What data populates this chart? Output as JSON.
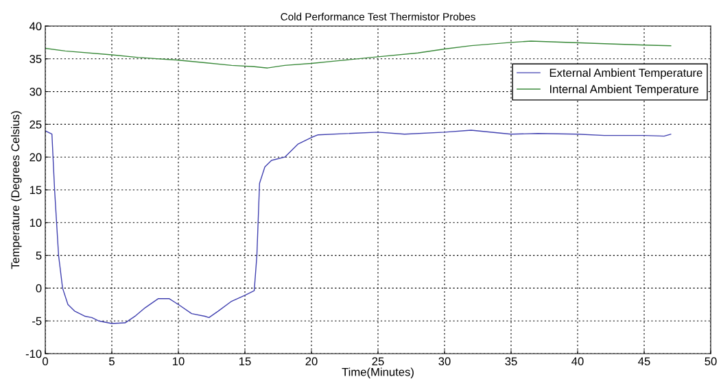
{
  "chart_data": {
    "type": "line",
    "title": "Cold Performance Test Thermistor Probes",
    "xlabel": "Time(Minutes)",
    "ylabel": "Temperature (Degrees Celsius)",
    "xlim": [
      0,
      50
    ],
    "xticks": [
      0,
      5,
      10,
      15,
      20,
      25,
      30,
      35,
      40,
      45,
      50
    ],
    "ylim": [
      -10,
      40
    ],
    "yticks": [
      -10,
      -5,
      0,
      5,
      10,
      15,
      20,
      25,
      30,
      35,
      40
    ],
    "grid": true,
    "legend": "top right",
    "line_style": "solid",
    "series": [
      {
        "name": "External Ambient Temperature",
        "color": "#4040b0",
        "x": [
          0,
          0.5,
          0.7,
          1,
          1.3,
          1.7,
          2.2,
          3,
          3.5,
          4,
          5,
          6,
          6.8,
          7.5,
          8.5,
          9.3,
          10,
          11,
          12,
          12.3,
          13,
          14,
          15,
          15.7,
          15.9,
          16.1,
          16.5,
          17,
          18,
          19,
          20,
          20.5,
          25,
          27,
          30,
          32,
          35,
          37,
          40,
          42,
          45,
          46.5,
          47
        ],
        "values": [
          24,
          23.5,
          15,
          5,
          0,
          -2.5,
          -3.5,
          -4.3,
          -4.5,
          -5,
          -5.4,
          -5.3,
          -4.2,
          -3,
          -1.6,
          -1.6,
          -2.5,
          -3.9,
          -4.3,
          -4.5,
          -3.5,
          -2,
          -1.1,
          -0.4,
          5,
          16,
          18.5,
          19.5,
          20,
          22,
          23,
          23.4,
          23.8,
          23.5,
          23.8,
          24.1,
          23.5,
          23.6,
          23.5,
          23.3,
          23.3,
          23.2,
          23.5
        ]
      },
      {
        "name": "Internal Ambient Temperature",
        "color": "#3a8a3a",
        "x": [
          0,
          1.5,
          5,
          7,
          10,
          12,
          14,
          15.7,
          16.7,
          18,
          20,
          22,
          25,
          28,
          30,
          32,
          35,
          36.5,
          38,
          42,
          45,
          47
        ],
        "values": [
          36.6,
          36.2,
          35.6,
          35.2,
          34.8,
          34.4,
          34,
          33.8,
          33.6,
          34,
          34.3,
          34.7,
          35.3,
          35.9,
          36.5,
          37,
          37.5,
          37.7,
          37.6,
          37.3,
          37.1,
          37
        ]
      }
    ]
  }
}
